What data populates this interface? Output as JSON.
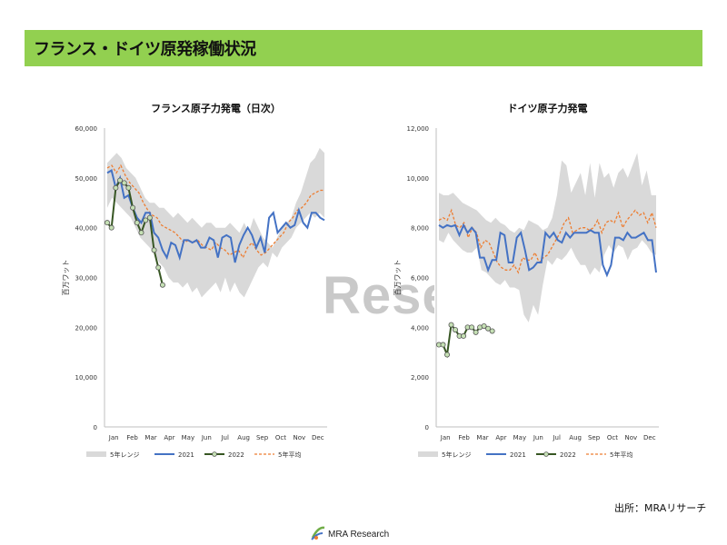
{
  "page": {
    "title": "フランス・ドイツ原発稼働状況"
  },
  "watermark": "Rese",
  "source": "出所：MRAリサーチ",
  "logo": {
    "text": "MRA Research"
  },
  "colors": {
    "title_bg": "#92d050",
    "range": "#d9d9d9",
    "y2021": "#4472c4",
    "y2022": "#375623",
    "y2022_marker": "#c5e0b4",
    "avg": "#ed7d31"
  },
  "chart_data": [
    {
      "type": "line",
      "title": "フランス原子力発電（日次）",
      "ylabel": "百万ワット",
      "ylim": [
        0,
        60000
      ],
      "yticks": [
        0,
        10000,
        20000,
        30000,
        40000,
        50000,
        60000
      ],
      "ytick_labels": [
        "0",
        "10,000",
        "20,000",
        "30,000",
        "40,000",
        "50,000",
        "60,000"
      ],
      "months": [
        "Jan",
        "Feb",
        "Mar",
        "Apr",
        "May",
        "Jun",
        "Jul",
        "Aug",
        "Sep",
        "Oct",
        "Nov",
        "Dec"
      ],
      "legend": [
        "5年レンジ",
        "2021",
        "2022",
        "5年平均"
      ],
      "range_upper": [
        53000,
        54000,
        55000,
        54000,
        52000,
        51000,
        50000,
        48000,
        46000,
        45000,
        45000,
        44000,
        44000,
        43000,
        42000,
        43000,
        42000,
        41000,
        42000,
        41000,
        40000,
        41000,
        41000,
        40000,
        40000,
        40000,
        41000,
        40000,
        39000,
        41000,
        39000,
        42000,
        40000,
        38000,
        37000,
        36000,
        38000,
        40000,
        41000,
        42000,
        45000,
        47000,
        50000,
        53000,
        54000,
        56000,
        55000
      ],
      "range_lower": [
        44000,
        46000,
        45000,
        44000,
        43000,
        42000,
        40000,
        38000,
        37000,
        36000,
        35000,
        33000,
        32000,
        30000,
        29000,
        29000,
        28000,
        29000,
        27000,
        28000,
        26000,
        27000,
        28000,
        29000,
        27000,
        30000,
        27000,
        29000,
        27000,
        26000,
        28000,
        30000,
        32000,
        33000,
        32000,
        35000,
        34000,
        36000,
        37000,
        38000,
        40000,
        41000,
        42000,
        43000,
        42000,
        43000,
        42000
      ],
      "y2021": [
        51000,
        51500,
        48000,
        50000,
        46000,
        46500,
        44000,
        42000,
        41000,
        43000,
        43000,
        39000,
        38000,
        35500,
        34000,
        37000,
        36500,
        34000,
        37500,
        37500,
        37000,
        37500,
        36000,
        36000,
        38000,
        37500,
        34000,
        38000,
        38500,
        38000,
        33000,
        36500,
        38500,
        40000,
        38500,
        36000,
        38000,
        35000,
        42000,
        43000,
        39000,
        40000,
        41000,
        40000,
        40500,
        43500,
        41000,
        40000,
        43000,
        43000,
        42000,
        41500
      ],
      "y2022": [
        41000,
        40000,
        48000,
        49500,
        49000,
        48000,
        44000,
        41000,
        39000,
        41500,
        42000,
        35500,
        32000,
        28500
      ],
      "avg5": [
        52000,
        52500,
        51000,
        52500,
        50500,
        49000,
        48000,
        47000,
        45000,
        43500,
        42500,
        42000,
        40500,
        40000,
        39500,
        39000,
        38000,
        37000,
        37500,
        37000,
        37500,
        36500,
        36000,
        35500,
        37000,
        36000,
        35500,
        34500,
        35000,
        35500,
        34000,
        36000,
        37000,
        35500,
        34500,
        35000,
        36000,
        37000,
        38000,
        39000,
        41000,
        42000,
        43500,
        44000,
        45000,
        46500,
        47000,
        47500,
        47500
      ]
    },
    {
      "type": "line",
      "title": "ドイツ原子力発電",
      "ylabel": "百万ワット",
      "ylim": [
        0,
        12000
      ],
      "yticks": [
        0,
        2000,
        4000,
        6000,
        8000,
        10000,
        12000
      ],
      "ytick_labels": [
        "0",
        "2,000",
        "4,000",
        "6,000",
        "8,000",
        "10,000",
        "12,000"
      ],
      "months": [
        "Jan",
        "Feb",
        "Mar",
        "Apr",
        "May",
        "Jun",
        "Jul",
        "Aug",
        "Sep",
        "Oct",
        "Nov",
        "Dec"
      ],
      "legend": [
        "5年レンジ",
        "2021",
        "2022",
        "5年平均"
      ],
      "range_upper": [
        9400,
        9300,
        9300,
        9400,
        9200,
        9000,
        8900,
        8800,
        8700,
        8500,
        8300,
        8200,
        8400,
        8200,
        8100,
        7900,
        7800,
        8000,
        7900,
        8300,
        8200,
        8100,
        7900,
        8000,
        8400,
        9300,
        10700,
        10500,
        9400,
        9800,
        10200,
        9300,
        10600,
        9200,
        10600,
        10000,
        10200,
        9600,
        10200,
        10400,
        10000,
        10500,
        11000,
        9700,
        10300,
        9300,
        9300
      ],
      "range_lower": [
        7500,
        7400,
        7800,
        7500,
        7300,
        7100,
        7000,
        7000,
        7200,
        6300,
        6200,
        6000,
        5800,
        5700,
        5900,
        5600,
        5600,
        5500,
        4500,
        4200,
        4900,
        4500,
        5700,
        6700,
        6500,
        6800,
        6700,
        6900,
        7200,
        6800,
        6500,
        6500,
        6100,
        6400,
        6200,
        6900,
        7300,
        7000,
        7300,
        7200,
        6700,
        7100,
        7200,
        7500,
        7300,
        7000,
        6900
      ],
      "y2021": [
        8100,
        8000,
        8100,
        8050,
        8100,
        7700,
        8100,
        7800,
        8000,
        7800,
        6800,
        6800,
        6300,
        6700,
        6700,
        7800,
        7700,
        6600,
        6600,
        7600,
        7800,
        7100,
        6300,
        6400,
        6600,
        6600,
        7800,
        7600,
        7800,
        7500,
        7400,
        7800,
        7600,
        7800,
        7800,
        7800,
        7800,
        7900,
        7800,
        7800,
        6500,
        6100,
        6500,
        7600,
        7600,
        7500,
        7800,
        7600,
        7600,
        7700,
        7800,
        7500,
        7500,
        6200
      ],
      "y2022": [
        3300,
        3300,
        2900,
        4100,
        3900,
        3650,
        3650,
        4000,
        4000,
        3800,
        4000,
        4050,
        3950,
        3850
      ],
      "avg5": [
        8300,
        8400,
        8300,
        8700,
        8100,
        8000,
        8200,
        7600,
        8000,
        7800,
        7200,
        7500,
        7400,
        7000,
        6600,
        6400,
        6300,
        6300,
        6500,
        6200,
        6800,
        6700,
        6700,
        7000,
        6600,
        6800,
        6900,
        7200,
        7500,
        7800,
        8200,
        8400,
        7800,
        7900,
        8000,
        8000,
        7900,
        8000,
        8300,
        7800,
        8200,
        8300,
        8200,
        8600,
        8000,
        8300,
        8500,
        8700,
        8500,
        8600,
        8200,
        8600,
        8000
      ]
    }
  ]
}
